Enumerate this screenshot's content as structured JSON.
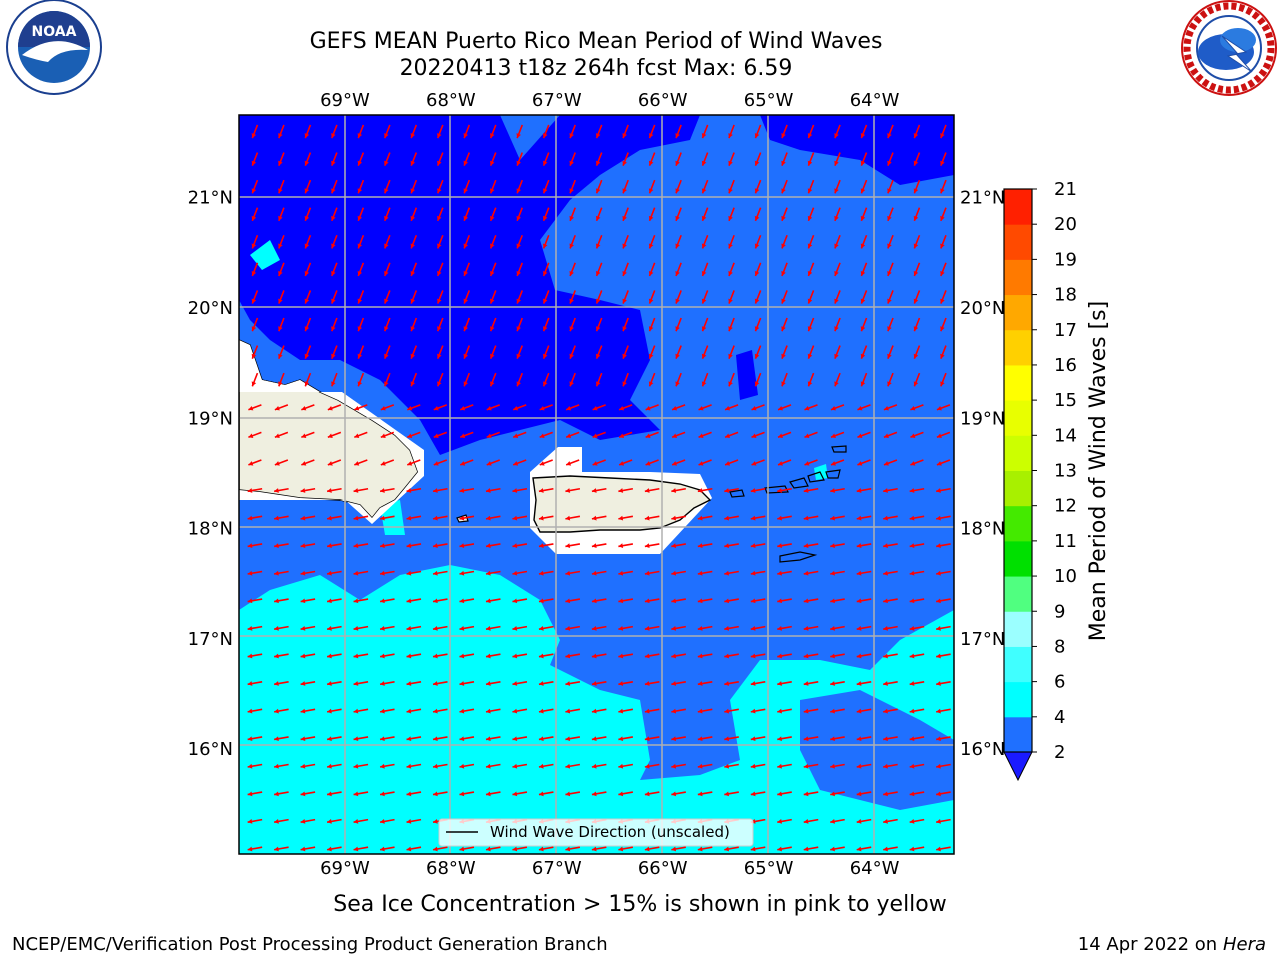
{
  "title_line1": "GEFS MEAN Puerto Rico Mean Period of Wind Waves",
  "title_line2": "20220413 t18z 264h fcst   Max: 6.59",
  "footer_left": "NCEP/EMC/Verification Post Processing Product Generation Branch",
  "footer_right_prefix": "14 Apr 2022 on ",
  "footer_right_host": "Hera",
  "sea_ice_note": "Sea Ice Concentration > 15% is shown in pink to yellow",
  "logos": {
    "noaa": {
      "text": "NOAA",
      "icon": "noaa-logo",
      "ring_text": "NATIONAL OCEANIC AND ATMOSPHERIC ADMINISTRATION · U.S. DEPARTMENT OF COMMERCE"
    },
    "nws": {
      "icon": "nws-logo",
      "ring_text": "NATIONAL WEATHER SERVICE"
    }
  },
  "chart_data": {
    "type": "heatmap",
    "title": "GEFS MEAN Puerto Rico Mean Period of Wind Waves",
    "subtitle": "20220413 t18z 264h fcst   Max: 6.59",
    "x_ticks": [
      "69°W",
      "68°W",
      "67°W",
      "66°W",
      "65°W",
      "64°W"
    ],
    "x_tick_values": [
      -69,
      -68,
      -67,
      -66,
      -65,
      -64
    ],
    "y_ticks": [
      "21°N",
      "20°N",
      "19°N",
      "18°N",
      "17°N",
      "16°N"
    ],
    "y_tick_values": [
      21,
      20,
      19,
      18,
      17,
      16
    ],
    "xlim": [
      -70,
      -63.25
    ],
    "ylim": [
      15.05,
      21.75
    ],
    "grid": true,
    "colorbar": {
      "label": "Mean Period of Wind Waves [s]",
      "ticks": [
        "2",
        "4",
        "6",
        "8",
        "9",
        "10",
        "11",
        "12",
        "13",
        "14",
        "15",
        "16",
        "17",
        "18",
        "19",
        "20",
        "21"
      ],
      "colors": [
        "#1a1aff",
        "#1f70ff",
        "#00ffff",
        "#40ffff",
        "#9bffff",
        "#50ff80",
        "#00e000",
        "#44ea00",
        "#a8f000",
        "#ccff00",
        "#e8ff00",
        "#ffff00",
        "#ffd000",
        "#ffa800",
        "#ff7a00",
        "#ff4a00",
        "#ff2000",
        "#ff0000"
      ],
      "extend": "min"
    },
    "legend": {
      "label": "Wind Wave Direction (unscaled)",
      "placement": "bottom-center"
    },
    "max_value": 6.59,
    "field_class_colors": {
      "below_2": "#0000ff",
      "2_4": "#1f70ff",
      "4_6": "#00ffff"
    },
    "land_color": "#efefe0",
    "arrow_color": "#ff0000"
  }
}
